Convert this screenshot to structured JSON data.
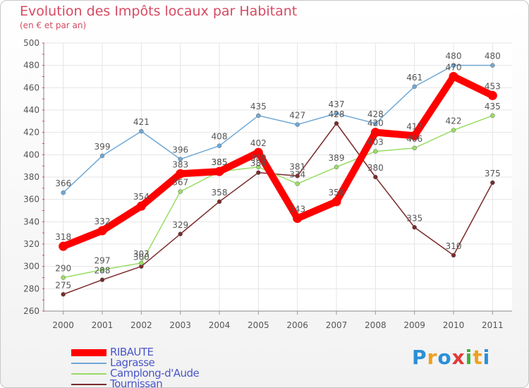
{
  "title": "Evolution des Impôts locaux par Habitant",
  "subtitle": "(en € et par an)",
  "brand": {
    "letters": [
      "P",
      "r",
      "o",
      "x",
      "i",
      "t",
      "i"
    ],
    "colors": [
      "#2a8fd8",
      "#f0a020",
      "#2a8fd8",
      "#e23a3a",
      "#40b040",
      "#f0a020",
      "#2a8fd8"
    ]
  },
  "chart_data": {
    "type": "line",
    "x": [
      "2000",
      "2001",
      "2002",
      "2003",
      "2004",
      "2005",
      "2006",
      "2007",
      "2008",
      "2009",
      "2010",
      "2011"
    ],
    "ylim": [
      260,
      500
    ],
    "yticks": [
      "260",
      "280",
      "300",
      "320",
      "340",
      "360",
      "380",
      "400",
      "420",
      "440",
      "460",
      "480",
      "500"
    ],
    "grid": true,
    "series": [
      {
        "name": "Tournissan",
        "color": "#7a2a2a",
        "values": [
          275,
          288,
          300,
          329,
          358,
          384,
          381,
          428,
          380,
          335,
          310,
          375
        ]
      },
      {
        "name": "Camplong-d'Aude",
        "color": "#99dd66",
        "values": [
          290,
          297,
          303,
          367,
          385,
          389,
          374,
          389,
          403,
          406,
          422,
          435
        ]
      },
      {
        "name": "Lagrasse",
        "color": "#6fa8d6",
        "values": [
          366,
          399,
          421,
          396,
          408,
          435,
          427,
          437,
          428,
          461,
          480,
          480
        ]
      },
      {
        "name": "RIBAUTE",
        "color": "#ff0000",
        "values": [
          318,
          332,
          354,
          383,
          385,
          402,
          343,
          358,
          420,
          417,
          470,
          453
        ]
      }
    ],
    "legend_order": [
      "RIBAUTE",
      "Lagrasse",
      "Camplong-d'Aude",
      "Tournissan"
    ],
    "legend_position": "bottom-left"
  }
}
